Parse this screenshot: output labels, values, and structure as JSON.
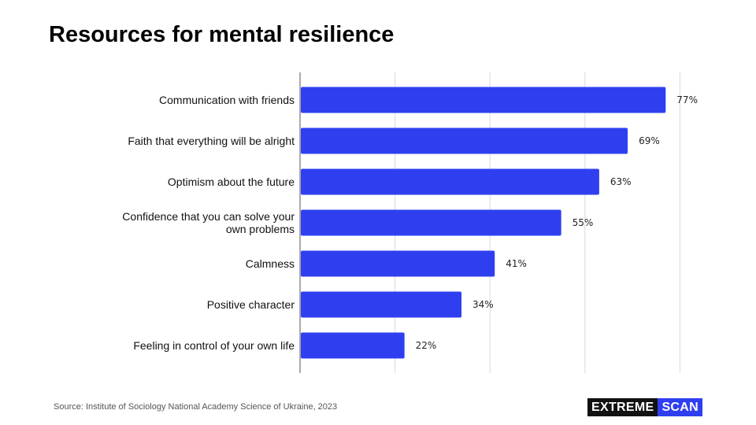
{
  "title": "Resources for mental resilience",
  "source": "Source: Institute of Sociology National Academy Science of Ukraine, 2023",
  "brand": {
    "part1": "EXTREME",
    "part2": "SCAN"
  },
  "colors": {
    "bar": "#2f3ff0",
    "grid": "#d9d9d9",
    "axis": "#555555"
  },
  "chart_data": {
    "type": "bar",
    "orientation": "horizontal",
    "categories": [
      [
        "Communication with friends"
      ],
      [
        "Faith that everything will be alright"
      ],
      [
        "Optimism about the future"
      ],
      [
        "Confidence that you can solve your",
        "own problems"
      ],
      [
        "Calmness"
      ],
      [
        "Positive character"
      ],
      [
        "Feeling in control of your own life"
      ]
    ],
    "values": [
      77,
      69,
      63,
      55,
      41,
      34,
      22
    ],
    "value_labels": [
      "77%",
      "69%",
      "63%",
      "55%",
      "41%",
      "34%",
      "22%"
    ],
    "xlim": [
      0,
      80
    ],
    "grid_step": 20,
    "grid": true,
    "legend": false
  }
}
